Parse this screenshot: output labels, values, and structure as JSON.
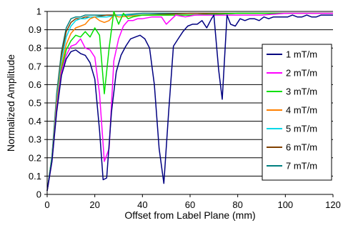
{
  "chart_data": {
    "type": "line",
    "xlabel": "Offset from Label Plane (mm)",
    "ylabel": "Normalized Amplitude",
    "xlim": [
      0,
      120
    ],
    "ylim": [
      0,
      1
    ],
    "xticks": [
      0,
      20,
      40,
      60,
      80,
      100,
      120
    ],
    "yticks": [
      0,
      0.1,
      0.2,
      0.3,
      0.4,
      0.5,
      0.6,
      0.7,
      0.8,
      0.9,
      1
    ],
    "grid": "horizontal",
    "legend_position": "right",
    "series": [
      {
        "name": "1 mT/m",
        "color": "#000080",
        "x": [
          0,
          2,
          4,
          6,
          8,
          10,
          12,
          14,
          16,
          18,
          20,
          22,
          23.5,
          25,
          27,
          29,
          31,
          33,
          35,
          37,
          39,
          41,
          43,
          45,
          47,
          49,
          51,
          53,
          55,
          57,
          59,
          61,
          63,
          65,
          67,
          69,
          70,
          72,
          73.5,
          75.5,
          77,
          79,
          81,
          83,
          85,
          87,
          89,
          91,
          93,
          95,
          97,
          99,
          101,
          103,
          105,
          107,
          109,
          111,
          113,
          115,
          117,
          120
        ],
        "y": [
          0.02,
          0.18,
          0.45,
          0.65,
          0.74,
          0.78,
          0.79,
          0.77,
          0.76,
          0.72,
          0.63,
          0.35,
          0.08,
          0.09,
          0.45,
          0.67,
          0.76,
          0.81,
          0.85,
          0.86,
          0.87,
          0.85,
          0.8,
          0.6,
          0.25,
          0.06,
          0.45,
          0.81,
          0.85,
          0.89,
          0.92,
          0.93,
          0.93,
          0.95,
          0.91,
          0.96,
          0.98,
          0.68,
          0.52,
          0.98,
          0.93,
          0.92,
          0.96,
          0.95,
          0.96,
          0.96,
          0.95,
          0.97,
          0.96,
          0.97,
          0.97,
          0.97,
          0.97,
          0.98,
          0.97,
          0.97,
          0.98,
          0.97,
          0.97,
          0.98,
          0.98,
          0.98
        ]
      },
      {
        "name": "2 mT/m",
        "color": "#ff00ff",
        "x": [
          0,
          2,
          4,
          6,
          8,
          10,
          12,
          14,
          16,
          18,
          20,
          22,
          24,
          26,
          28,
          30,
          32,
          34,
          36,
          38,
          40,
          44,
          48,
          50,
          54,
          58,
          62,
          66,
          70,
          80,
          90,
          100,
          110,
          120
        ],
        "y": [
          0.02,
          0.18,
          0.47,
          0.67,
          0.76,
          0.81,
          0.82,
          0.85,
          0.8,
          0.79,
          0.75,
          0.55,
          0.18,
          0.25,
          0.73,
          0.85,
          0.92,
          0.95,
          0.95,
          0.96,
          0.96,
          0.97,
          0.97,
          0.93,
          0.98,
          0.97,
          0.98,
          0.98,
          0.98,
          0.98,
          0.98,
          0.99,
          0.99,
          0.99
        ]
      },
      {
        "name": "3 mT/m",
        "color": "#00e000",
        "x": [
          0,
          2,
          4,
          6,
          8,
          10,
          12,
          14,
          16,
          18,
          20,
          22,
          24,
          26,
          28,
          30,
          32,
          34,
          36,
          40,
          50,
          60,
          80,
          100,
          120
        ],
        "y": [
          0.02,
          0.19,
          0.48,
          0.68,
          0.79,
          0.84,
          0.87,
          0.86,
          0.89,
          0.86,
          0.91,
          0.87,
          0.55,
          0.8,
          1.0,
          0.93,
          0.99,
          0.96,
          0.97,
          0.98,
          0.98,
          0.98,
          0.99,
          0.99,
          0.99
        ]
      },
      {
        "name": "4 mT/m",
        "color": "#ff8000",
        "x": [
          0,
          2,
          4,
          6,
          8,
          10,
          12,
          14,
          16,
          18,
          20,
          22,
          24,
          26,
          28,
          30,
          40,
          60,
          80,
          100,
          120
        ],
        "y": [
          0.02,
          0.19,
          0.5,
          0.7,
          0.82,
          0.88,
          0.91,
          0.92,
          0.93,
          0.96,
          0.97,
          0.95,
          0.94,
          0.95,
          0.98,
          0.97,
          0.98,
          0.98,
          0.99,
          0.99,
          0.99
        ]
      },
      {
        "name": "5 mT/m",
        "color": "#00d8e8",
        "x": [
          0,
          2,
          4,
          6,
          8,
          10,
          12,
          14,
          16,
          18,
          20,
          25,
          30,
          40,
          60,
          80,
          100,
          120
        ],
        "y": [
          0.02,
          0.2,
          0.52,
          0.73,
          0.86,
          0.92,
          0.95,
          0.96,
          0.96,
          0.97,
          0.97,
          0.97,
          0.98,
          0.98,
          0.98,
          0.99,
          0.99,
          0.99
        ]
      },
      {
        "name": "6 mT/m",
        "color": "#804000",
        "x": [
          0,
          2,
          4,
          6,
          8,
          10,
          12,
          14,
          16,
          18,
          20,
          25,
          30,
          40,
          60,
          80,
          100,
          120
        ],
        "y": [
          0.02,
          0.2,
          0.53,
          0.76,
          0.89,
          0.94,
          0.96,
          0.96,
          0.97,
          0.97,
          0.97,
          0.98,
          0.98,
          0.98,
          0.99,
          0.99,
          0.99,
          0.99
        ]
      },
      {
        "name": "7 mT/m",
        "color": "#008080",
        "x": [
          0,
          2,
          4,
          6,
          8,
          10,
          12,
          14,
          16,
          18,
          20,
          25,
          30,
          40,
          60,
          80,
          100,
          120
        ],
        "y": [
          0.02,
          0.21,
          0.55,
          0.78,
          0.91,
          0.96,
          0.97,
          0.97,
          0.98,
          0.98,
          0.98,
          0.98,
          0.98,
          0.99,
          0.99,
          0.99,
          0.99,
          0.99
        ]
      }
    ]
  }
}
